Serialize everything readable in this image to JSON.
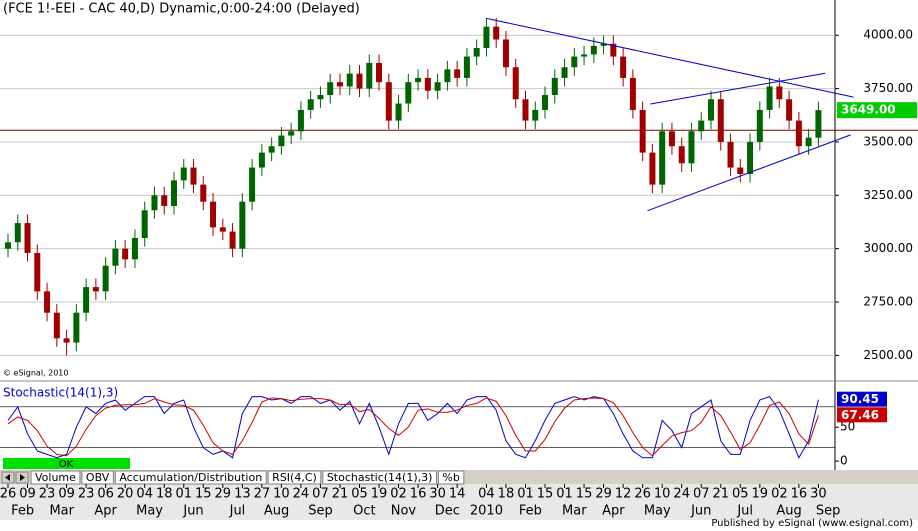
{
  "chart_data": [
    {
      "type": "candlestick",
      "title": "(FCE 1!-EEI - CAC 40,D) Dynamic,0:00-24:00 (Delayed)",
      "copyright": "© eSignal, 2010",
      "xlim": [
        -0.82,
        84.7
      ],
      "ylim": [
        2380,
        4165
      ],
      "yticks": [
        {
          "value": 2500,
          "label": "2500.00"
        },
        {
          "value": 2750,
          "label": "2750.00"
        },
        {
          "value": 3000,
          "label": "3000.00"
        },
        {
          "value": 3250,
          "label": "3250.00"
        },
        {
          "value": 3500,
          "label": "3500.00"
        },
        {
          "value": 3750,
          "label": "3750.00"
        },
        {
          "value": 4000,
          "label": "4000.00"
        }
      ],
      "grid": true,
      "up_color": "#006400",
      "down_color": "#a00000",
      "x": [
        0,
        1,
        2,
        3,
        4,
        5,
        6,
        7,
        8,
        9,
        10,
        11,
        12,
        13,
        14,
        15,
        16,
        17,
        18,
        19,
        20,
        21,
        22,
        23,
        24,
        25,
        26,
        27,
        28,
        29,
        30,
        31,
        32,
        33,
        34,
        35,
        36,
        37,
        38,
        39,
        40,
        41,
        42,
        43,
        44,
        45,
        46,
        47,
        48,
        49,
        50,
        51,
        52,
        53,
        54,
        55,
        56,
        57,
        58,
        59,
        60,
        61,
        62,
        63,
        64,
        65,
        66,
        67,
        68,
        69,
        70,
        71,
        72,
        73,
        74,
        75,
        76,
        77,
        78,
        79,
        80,
        81,
        82,
        83
      ],
      "open": [
        3000,
        3030,
        3120,
        2980,
        2800,
        2700,
        2580,
        2560,
        2700,
        2820,
        2800,
        2920,
        3000,
        2950,
        3050,
        3180,
        3250,
        3200,
        3320,
        3380,
        3300,
        3220,
        3100,
        3080,
        3000,
        3220,
        3380,
        3450,
        3480,
        3530,
        3550,
        3650,
        3700,
        3720,
        3780,
        3760,
        3820,
        3750,
        3870,
        3780,
        3600,
        3680,
        3780,
        3800,
        3740,
        3780,
        3840,
        3800,
        3900,
        3940,
        4040,
        3980,
        3850,
        3700,
        3600,
        3650,
        3720,
        3800,
        3850,
        3900,
        3910,
        3950,
        3960,
        3900,
        3800,
        3650,
        3450,
        3300,
        3550,
        3480,
        3400,
        3550,
        3600,
        3700,
        3500,
        3380,
        3350,
        3500,
        3650,
        3760,
        3700,
        3600,
        3480,
        3520
      ],
      "high": [
        3070,
        3160,
        3160,
        3020,
        2840,
        2740,
        2620,
        2740,
        2860,
        2860,
        2960,
        3040,
        3040,
        3090,
        3220,
        3290,
        3290,
        3360,
        3420,
        3420,
        3340,
        3260,
        3140,
        3120,
        3260,
        3420,
        3490,
        3520,
        3570,
        3590,
        3690,
        3740,
        3760,
        3820,
        3820,
        3860,
        3860,
        3910,
        3910,
        3820,
        3720,
        3820,
        3840,
        3840,
        3820,
        3880,
        3880,
        3940,
        3980,
        4080,
        4080,
        4020,
        3890,
        3740,
        3690,
        3760,
        3840,
        3890,
        3940,
        3950,
        3990,
        4000,
        4000,
        3940,
        3840,
        3690,
        3490,
        3590,
        3590,
        3520,
        3590,
        3640,
        3740,
        3740,
        3540,
        3420,
        3540,
        3690,
        3800,
        3800,
        3740,
        3640,
        3560,
        3689
      ],
      "low": [
        2960,
        2990,
        2940,
        2760,
        2660,
        2540,
        2500,
        2520,
        2660,
        2760,
        2760,
        2880,
        2910,
        2910,
        3010,
        3140,
        3160,
        3160,
        3280,
        3260,
        3180,
        3060,
        3040,
        2960,
        2960,
        3180,
        3340,
        3410,
        3440,
        3490,
        3510,
        3610,
        3660,
        3680,
        3720,
        3720,
        3710,
        3710,
        3740,
        3560,
        3560,
        3640,
        3740,
        3700,
        3700,
        3740,
        3760,
        3760,
        3860,
        3900,
        3940,
        3810,
        3660,
        3560,
        3560,
        3610,
        3680,
        3760,
        3810,
        3860,
        3870,
        3910,
        3860,
        3760,
        3610,
        3410,
        3260,
        3260,
        3440,
        3360,
        3360,
        3510,
        3560,
        3460,
        3340,
        3310,
        3310,
        3460,
        3610,
        3660,
        3560,
        3440,
        3440,
        3480
      ],
      "close": [
        3030,
        3120,
        2980,
        2800,
        2700,
        2580,
        2560,
        2700,
        2820,
        2800,
        2920,
        3000,
        2950,
        3050,
        3180,
        3250,
        3200,
        3320,
        3380,
        3300,
        3220,
        3100,
        3080,
        3000,
        3220,
        3380,
        3450,
        3480,
        3530,
        3550,
        3650,
        3700,
        3720,
        3780,
        3760,
        3820,
        3750,
        3870,
        3780,
        3600,
        3680,
        3780,
        3800,
        3740,
        3780,
        3840,
        3800,
        3900,
        3940,
        4040,
        3980,
        3850,
        3700,
        3600,
        3650,
        3720,
        3800,
        3850,
        3900,
        3910,
        3950,
        3960,
        3900,
        3800,
        3650,
        3450,
        3300,
        3550,
        3480,
        3400,
        3550,
        3600,
        3700,
        3500,
        3380,
        3350,
        3500,
        3650,
        3760,
        3700,
        3600,
        3480,
        3520,
        3649
      ],
      "last_label": "3649.00",
      "hline": 3555,
      "trendlines": [
        {
          "x": [
            49,
            86.6
          ],
          "y": [
            4079,
            3710
          ]
        },
        {
          "x": [
            65.8,
            83.7
          ],
          "y": [
            3678,
            3822
          ]
        },
        {
          "x": [
            65.5,
            86.3
          ],
          "y": [
            3178,
            3533
          ]
        }
      ],
      "xticks": [
        {
          "value": 0,
          "label": "26"
        },
        {
          "value": 2,
          "label": "09"
        },
        {
          "value": 4,
          "label": "23"
        },
        {
          "value": 6,
          "label": "09"
        },
        {
          "value": 8,
          "label": "23"
        },
        {
          "value": 10,
          "label": "06"
        },
        {
          "value": 12,
          "label": "20"
        },
        {
          "value": 14,
          "label": "04"
        },
        {
          "value": 16,
          "label": "18"
        },
        {
          "value": 18,
          "label": "01"
        },
        {
          "value": 20,
          "label": "15"
        },
        {
          "value": 22,
          "label": "29"
        },
        {
          "value": 24,
          "label": "13"
        },
        {
          "value": 26,
          "label": "27"
        },
        {
          "value": 28,
          "label": "10"
        },
        {
          "value": 30,
          "label": "24"
        },
        {
          "value": 32,
          "label": "07"
        },
        {
          "value": 34,
          "label": "21"
        },
        {
          "value": 36,
          "label": "05"
        },
        {
          "value": 38,
          "label": "19"
        },
        {
          "value": 40,
          "label": "02"
        },
        {
          "value": 42,
          "label": "16"
        },
        {
          "value": 44,
          "label": "30"
        },
        {
          "value": 46,
          "label": "14"
        },
        {
          "value": 49,
          "label": "04"
        },
        {
          "value": 51,
          "label": "18"
        },
        {
          "value": 53,
          "label": "01"
        },
        {
          "value": 55,
          "label": "15"
        },
        {
          "value": 57,
          "label": "01"
        },
        {
          "value": 59,
          "label": "15"
        },
        {
          "value": 61,
          "label": "29"
        },
        {
          "value": 63,
          "label": "12"
        },
        {
          "value": 65,
          "label": "26"
        },
        {
          "value": 67,
          "label": "10"
        },
        {
          "value": 69,
          "label": "24"
        },
        {
          "value": 71,
          "label": "07"
        },
        {
          "value": 73,
          "label": "21"
        },
        {
          "value": 75,
          "label": "05"
        },
        {
          "value": 77,
          "label": "19"
        },
        {
          "value": 79,
          "label": "02"
        },
        {
          "value": 81,
          "label": "16"
        },
        {
          "value": 83,
          "label": "30"
        }
      ],
      "months": [
        {
          "value": 1.5,
          "label": "Feb"
        },
        {
          "value": 5.5,
          "label": "Mar"
        },
        {
          "value": 10,
          "label": "Apr"
        },
        {
          "value": 14.5,
          "label": "May"
        },
        {
          "value": 19,
          "label": "Jun"
        },
        {
          "value": 23.5,
          "label": "Jul"
        },
        {
          "value": 27.5,
          "label": "Aug"
        },
        {
          "value": 32,
          "label": "Sep"
        },
        {
          "value": 36.5,
          "label": "Oct"
        },
        {
          "value": 40.5,
          "label": "Nov"
        },
        {
          "value": 45,
          "label": "Dec"
        },
        {
          "value": 49,
          "label": "2010"
        },
        {
          "value": 53.5,
          "label": "Feb"
        },
        {
          "value": 58,
          "label": "Mar"
        },
        {
          "value": 62,
          "label": "Apr"
        },
        {
          "value": 66.5,
          "label": "May"
        },
        {
          "value": 71,
          "label": "Jun"
        },
        {
          "value": 75.5,
          "label": "Jul"
        },
        {
          "value": 80,
          "label": "Aug"
        },
        {
          "value": 84,
          "label": "Sep"
        }
      ]
    },
    {
      "type": "line",
      "title": "Stochastic(14(1),3)",
      "ylim": [
        -13,
        115
      ],
      "yticks": [
        0,
        50
      ],
      "levels": [
        20,
        80
      ],
      "series": [
        {
          "color": "#0000cc",
          "values": [
            60,
            80,
            40,
            15,
            10,
            5,
            10,
            50,
            80,
            70,
            85,
            90,
            75,
            85,
            95,
            95,
            70,
            85,
            90,
            50,
            20,
            10,
            15,
            5,
            70,
            95,
            95,
            90,
            92,
            85,
            95,
            95,
            85,
            90,
            75,
            88,
            55,
            85,
            50,
            10,
            55,
            85,
            85,
            60,
            70,
            85,
            70,
            90,
            95,
            95,
            75,
            30,
            10,
            5,
            30,
            60,
            85,
            90,
            95,
            90,
            95,
            92,
            70,
            40,
            15,
            5,
            5,
            60,
            45,
            20,
            70,
            80,
            90,
            30,
            10,
            10,
            60,
            90,
            95,
            75,
            40,
            5,
            30,
            90.45
          ]
        },
        {
          "color": "#cc0000",
          "values": [
            55,
            65,
            60,
            45,
            22,
            10,
            8,
            22,
            47,
            67,
            78,
            82,
            83,
            83,
            85,
            92,
            87,
            83,
            82,
            75,
            53,
            27,
            15,
            10,
            30,
            57,
            87,
            93,
            92,
            89,
            91,
            92,
            92,
            90,
            83,
            84,
            73,
            76,
            63,
            48,
            38,
            50,
            75,
            77,
            72,
            72,
            75,
            82,
            85,
            93,
            88,
            67,
            38,
            15,
            15,
            32,
            58,
            78,
            90,
            92,
            93,
            92,
            86,
            67,
            42,
            20,
            8,
            23,
            37,
            42,
            45,
            57,
            80,
            67,
            43,
            17,
            27,
            53,
            82,
            87,
            70,
            40,
            25,
            67.46
          ]
        }
      ],
      "status": "OK"
    }
  ],
  "tabs": [
    "Volume",
    "OBV",
    "Accumulation/Distribution",
    "RSI(4,C)",
    "Stochastic(14(1),3)",
    "%b"
  ],
  "footer": "Published by eSignal (www.esignal.com)"
}
